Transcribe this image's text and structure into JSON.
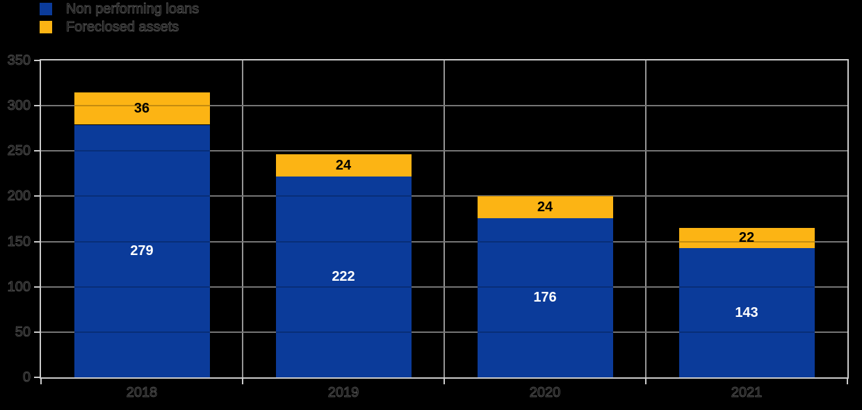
{
  "chart_data": {
    "type": "bar",
    "stacked": true,
    "title": "",
    "categories": [
      "2018",
      "2019",
      "2020",
      "2021"
    ],
    "series": [
      {
        "name": "Non performing loans",
        "color": "#0b3b9a",
        "label_color": "#ffffff",
        "values": [
          279,
          222,
          176,
          143
        ]
      },
      {
        "name": "Foreclosed assets",
        "color": "#fcb414",
        "label_color": "#000000",
        "values": [
          36,
          24,
          24,
          22
        ]
      }
    ],
    "ylim": [
      0,
      350
    ],
    "ytick_step": 50,
    "ytick_labels": [
      "0",
      "50",
      "100",
      "150",
      "200",
      "250",
      "300",
      "350"
    ],
    "grid": true,
    "legend_position": "top-left"
  },
  "colors": {
    "background": "#000000",
    "gridline": "#969696",
    "axis_border": "#cccccc",
    "faint_text_outline": "#4f4f4f"
  }
}
